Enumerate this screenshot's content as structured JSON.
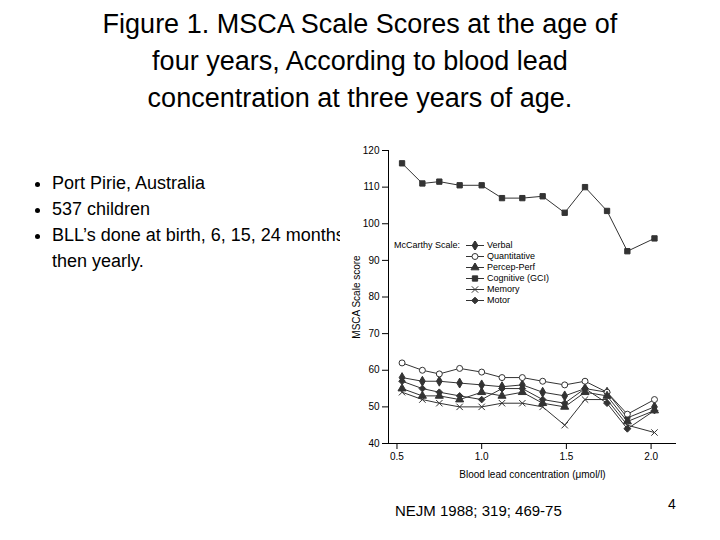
{
  "slide": {
    "title": [
      "Figure 1.  MSCA Scale Scores at the age of",
      "four years,  According to blood lead",
      "concentration at three years of age."
    ],
    "bullets": [
      "Port Pirie, Australia",
      "537 children",
      "BLL’s done at birth, 6, 15, 24 months then yearly."
    ],
    "citation": "NEJM 1988; 319; 469-75",
    "page_number": "4"
  },
  "chart_data": {
    "type": "line",
    "x_label": "Blood lead concentration (μmol/l)",
    "y_label": "MSCA Scale score",
    "legend_title": "McCarthy Scale:",
    "legend": "left",
    "x": [
      0.53,
      0.65,
      0.75,
      0.87,
      1.0,
      1.12,
      1.24,
      1.36,
      1.49,
      1.61,
      1.74,
      1.86,
      2.02
    ],
    "xlim": [
      0.45,
      2.15
    ],
    "xticks": [
      0.5,
      {
        "value": 1,
        "label": "1.0"
      },
      1.5,
      {
        "value": 2,
        "label": "2.0"
      }
    ],
    "ylim": [
      40,
      120
    ],
    "yticks": [
      40,
      50,
      60,
      70,
      80,
      90,
      100,
      110,
      120
    ],
    "series": [
      {
        "name": "Verbal",
        "color": "#333333",
        "marker": "diamond",
        "values": [
          58,
          57,
          57,
          56.5,
          56,
          55.5,
          56,
          54,
          53,
          55,
          54,
          47,
          50
        ]
      },
      {
        "name": "Quantitative",
        "color": "#333333",
        "marker": "circle",
        "values": [
          62,
          60,
          59,
          60.5,
          59.5,
          58,
          58,
          57,
          56,
          57,
          54,
          48,
          52
        ]
      },
      {
        "name": "Percep-Perf",
        "color": "#333333",
        "marker": "triangle",
        "values": [
          55,
          53,
          53,
          52,
          54,
          53,
          54,
          51,
          50,
          54,
          53,
          46,
          49
        ]
      },
      {
        "name": "Cognitive (GCI)",
        "color": "#333333",
        "marker": "square",
        "values": [
          116.5,
          111,
          111.5,
          110.5,
          110.5,
          107,
          107,
          107.5,
          103,
          110,
          103.5,
          92.5,
          96
        ]
      },
      {
        "name": "Memory",
        "color": "#333333",
        "marker": "times",
        "values": [
          54,
          52,
          51,
          50,
          50,
          51,
          51,
          50,
          45,
          52,
          52,
          45,
          43
        ]
      },
      {
        "name": "Motor",
        "color": "#333333",
        "marker": "diamond2",
        "values": [
          57,
          55,
          54,
          53,
          52,
          55,
          55,
          52,
          51,
          55,
          51,
          44,
          49
        ]
      }
    ]
  }
}
